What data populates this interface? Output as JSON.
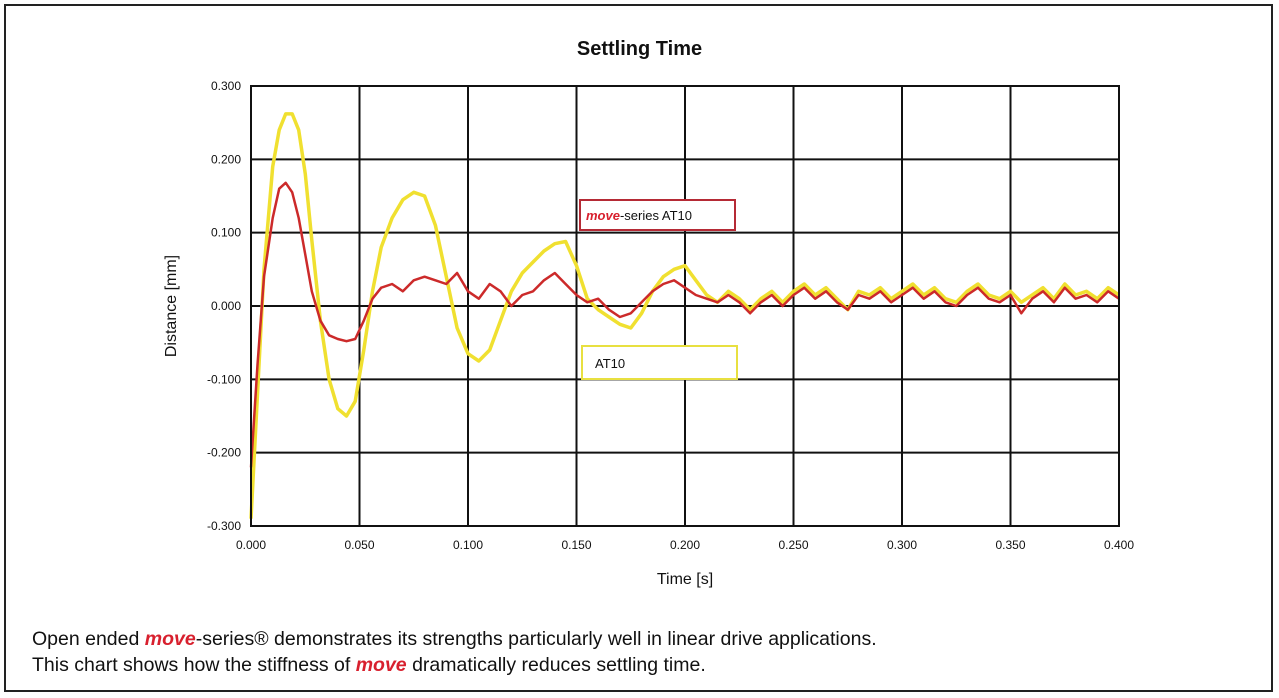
{
  "chart_data": {
    "type": "line",
    "title": "Settling Time",
    "xlabel": "Time [s]",
    "ylabel": "Distance [mm]",
    "xlim": [
      0,
      0.4
    ],
    "ylim": [
      -0.3,
      0.3
    ],
    "grid": true,
    "x_ticks": [
      "0.000",
      "0.050",
      "0.100",
      "0.150",
      "0.200",
      "0.250",
      "0.300",
      "0.350",
      "0.400"
    ],
    "y_ticks": [
      "0.300",
      "0.200",
      "0.100",
      "0.000",
      "-0.100",
      "-0.200",
      "-0.300"
    ],
    "series": [
      {
        "name": "AT10",
        "color": "#f0e030",
        "x": [
          0.0,
          0.003,
          0.006,
          0.01,
          0.013,
          0.016,
          0.019,
          0.022,
          0.025,
          0.028,
          0.032,
          0.036,
          0.04,
          0.044,
          0.048,
          0.052,
          0.056,
          0.06,
          0.065,
          0.07,
          0.075,
          0.08,
          0.085,
          0.09,
          0.095,
          0.1,
          0.105,
          0.11,
          0.115,
          0.12,
          0.125,
          0.13,
          0.135,
          0.14,
          0.145,
          0.15,
          0.155,
          0.16,
          0.165,
          0.17,
          0.175,
          0.18,
          0.185,
          0.19,
          0.195,
          0.2,
          0.205,
          0.21,
          0.215,
          0.22,
          0.225,
          0.23,
          0.235,
          0.24,
          0.245,
          0.25,
          0.255,
          0.26,
          0.265,
          0.27,
          0.275,
          0.28,
          0.285,
          0.29,
          0.295,
          0.3,
          0.305,
          0.31,
          0.315,
          0.32,
          0.325,
          0.33,
          0.335,
          0.34,
          0.345,
          0.35,
          0.355,
          0.36,
          0.365,
          0.37,
          0.375,
          0.38,
          0.385,
          0.39,
          0.395,
          0.4
        ],
        "values": [
          -0.29,
          -0.12,
          0.05,
          0.19,
          0.24,
          0.262,
          0.262,
          0.24,
          0.18,
          0.09,
          -0.02,
          -0.1,
          -0.14,
          -0.15,
          -0.13,
          -0.06,
          0.02,
          0.08,
          0.12,
          0.145,
          0.155,
          0.15,
          0.11,
          0.04,
          -0.03,
          -0.065,
          -0.075,
          -0.06,
          -0.02,
          0.02,
          0.045,
          0.06,
          0.075,
          0.085,
          0.088,
          0.055,
          0.01,
          -0.005,
          -0.015,
          -0.025,
          -0.03,
          -0.01,
          0.02,
          0.04,
          0.05,
          0.055,
          0.035,
          0.015,
          0.005,
          0.02,
          0.01,
          -0.005,
          0.01,
          0.02,
          0.005,
          0.02,
          0.03,
          0.015,
          0.025,
          0.01,
          -0.005,
          0.02,
          0.015,
          0.025,
          0.01,
          0.02,
          0.03,
          0.015,
          0.025,
          0.01,
          0.005,
          0.02,
          0.03,
          0.015,
          0.01,
          0.02,
          0.005,
          0.015,
          0.025,
          0.01,
          0.03,
          0.015,
          0.02,
          0.01,
          0.025,
          0.015
        ]
      },
      {
        "name": "move-series AT10",
        "color": "#cc2a2a",
        "x": [
          0.0,
          0.003,
          0.006,
          0.01,
          0.013,
          0.016,
          0.019,
          0.022,
          0.025,
          0.028,
          0.032,
          0.036,
          0.04,
          0.044,
          0.048,
          0.052,
          0.056,
          0.06,
          0.065,
          0.07,
          0.075,
          0.08,
          0.085,
          0.09,
          0.095,
          0.1,
          0.105,
          0.11,
          0.115,
          0.12,
          0.125,
          0.13,
          0.135,
          0.14,
          0.145,
          0.15,
          0.155,
          0.16,
          0.165,
          0.17,
          0.175,
          0.18,
          0.185,
          0.19,
          0.195,
          0.2,
          0.205,
          0.21,
          0.215,
          0.22,
          0.225,
          0.23,
          0.235,
          0.24,
          0.245,
          0.25,
          0.255,
          0.26,
          0.265,
          0.27,
          0.275,
          0.28,
          0.285,
          0.29,
          0.295,
          0.3,
          0.305,
          0.31,
          0.315,
          0.32,
          0.325,
          0.33,
          0.335,
          0.34,
          0.345,
          0.35,
          0.355,
          0.36,
          0.365,
          0.37,
          0.375,
          0.38,
          0.385,
          0.39,
          0.395,
          0.4
        ],
        "values": [
          -0.22,
          -0.08,
          0.04,
          0.12,
          0.16,
          0.168,
          0.155,
          0.12,
          0.07,
          0.02,
          -0.02,
          -0.04,
          -0.045,
          -0.048,
          -0.045,
          -0.02,
          0.01,
          0.025,
          0.03,
          0.02,
          0.035,
          0.04,
          0.035,
          0.03,
          0.045,
          0.02,
          0.01,
          0.03,
          0.02,
          0.0,
          0.015,
          0.02,
          0.035,
          0.045,
          0.03,
          0.015,
          0.005,
          0.01,
          -0.005,
          -0.015,
          -0.01,
          0.005,
          0.02,
          0.03,
          0.035,
          0.025,
          0.015,
          0.01,
          0.005,
          0.015,
          0.005,
          -0.01,
          0.005,
          0.015,
          0.0,
          0.015,
          0.025,
          0.01,
          0.02,
          0.005,
          -0.005,
          0.015,
          0.01,
          0.02,
          0.005,
          0.015,
          0.025,
          0.01,
          0.02,
          0.005,
          0.0,
          0.015,
          0.025,
          0.01,
          0.005,
          0.015,
          -0.01,
          0.01,
          0.02,
          0.005,
          0.025,
          0.01,
          0.015,
          0.005,
          0.02,
          0.01
        ]
      }
    ],
    "legend": {
      "red_label_em": "move",
      "red_label_rest": "-series  AT10",
      "yellow_label": "AT10"
    }
  },
  "caption": {
    "line1_pre": "Open ended ",
    "line1_em": "move",
    "line1_post": "-series® demonstrates its strengths particularly well in linear drive applications.",
    "line2_pre": "This chart shows how the stiffness of ",
    "line2_em": "move",
    "line2_post": " dramatically reduces settling time."
  }
}
